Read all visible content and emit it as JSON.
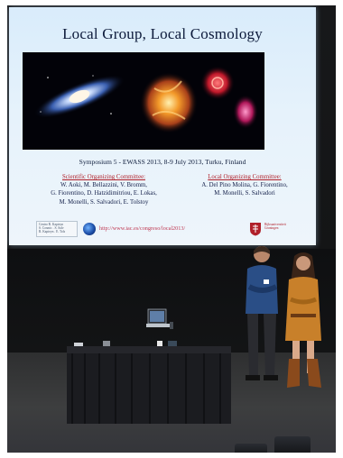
{
  "slide": {
    "title": "Local Group, Local Cosmology",
    "symposium": "Symposium 5 - EWASS 2013, 8-9 July 2013, Turku, Finland",
    "soc": {
      "heading": "Scientific Organizing Committee:",
      "lines": [
        "W. Aoki, M. Bellazzini, V. Bromm,",
        "G. Fiorentino, D. Hatzidimitriou, E. Lokas,",
        "M. Monelli, S. Salvadori, E. Tolstoy"
      ]
    },
    "loc": {
      "heading": "Local Organizing Committee:",
      "lines": [
        "A. Del Pino Molina, G. Fiorentino,",
        "M. Monelli, S. Salvadori"
      ]
    },
    "logo_box_lines": [
      "Centro R. Kapteyn",
      "S. Cosmic . S. Salv",
      "R. Kapteyn . E. Tols"
    ],
    "url": "http://www.iac.es/congreso/local2013/",
    "university_lines": [
      "Rijksuniversiteit",
      "Groningen"
    ]
  },
  "colors": {
    "screen_bg": "#e6f2fb",
    "title": "#0c1a3a",
    "committee_heading": "#b0202a",
    "url": "#c03a54",
    "room": "#0b0c0e"
  }
}
